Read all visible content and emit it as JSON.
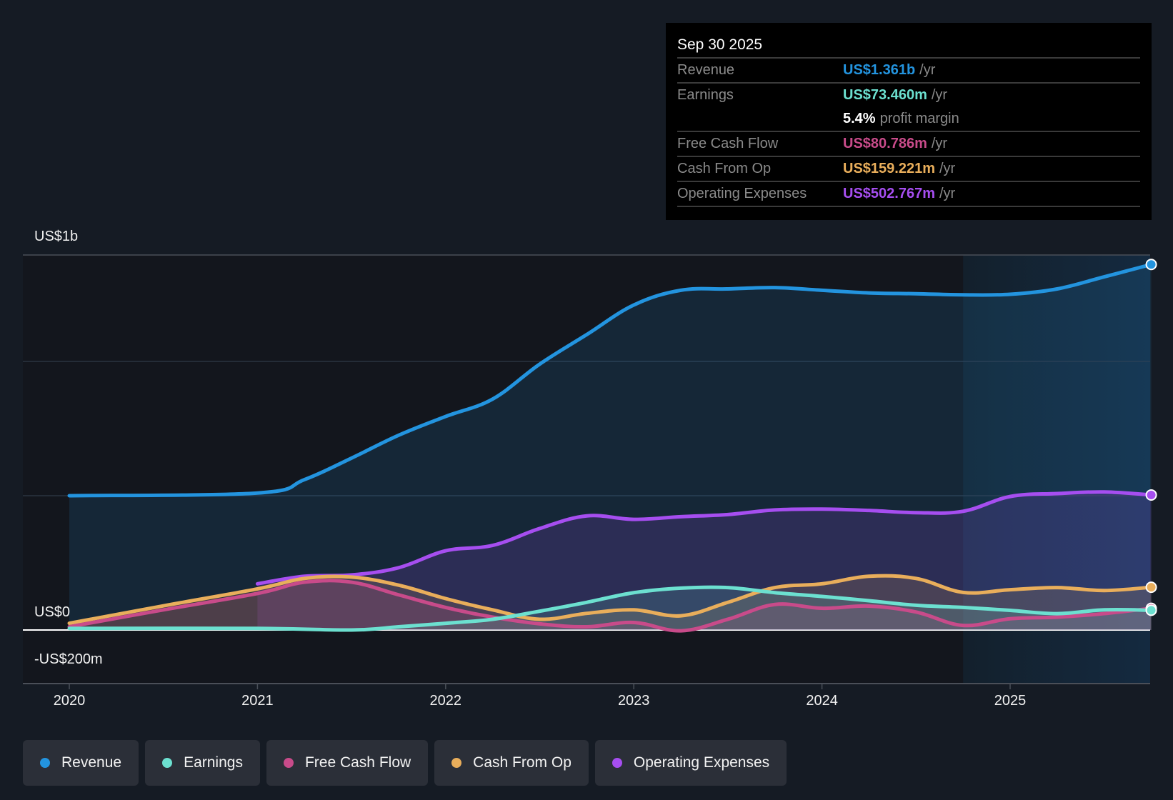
{
  "tooltip": {
    "date": "Sep 30 2025",
    "rows": [
      {
        "label": "Revenue",
        "value": "US$1.361b",
        "unit": "/yr",
        "color": "#2394df"
      },
      {
        "label": "Earnings",
        "value": "US$73.460m",
        "unit": "/yr",
        "color": "#6ce0d0"
      },
      {
        "label": "",
        "value": "5.4%",
        "unit": "profit margin",
        "color": "#ffffff"
      },
      {
        "label": "Free Cash Flow",
        "value": "US$80.786m",
        "unit": "/yr",
        "color": "#c84b8a"
      },
      {
        "label": "Cash From Op",
        "value": "US$159.221m",
        "unit": "/yr",
        "color": "#e9ae5b"
      },
      {
        "label": "Operating Expenses",
        "value": "US$502.767m",
        "unit": "/yr",
        "color": "#a64ef0"
      }
    ]
  },
  "legend": [
    {
      "label": "Revenue",
      "color": "#2394df"
    },
    {
      "label": "Earnings",
      "color": "#6ce0d0"
    },
    {
      "label": "Free Cash Flow",
      "color": "#c84b8a"
    },
    {
      "label": "Cash From Op",
      "color": "#e9ae5b"
    },
    {
      "label": "Operating Expenses",
      "color": "#a64ef0"
    }
  ],
  "chart_data": {
    "type": "area",
    "title": "",
    "xlabel": "",
    "ylabel": "",
    "x_ticks": [
      "2020",
      "2021",
      "2022",
      "2023",
      "2024",
      "2025"
    ],
    "y_tick_labels": [
      {
        "value": 1000,
        "label": "US$1b"
      },
      {
        "value": 0,
        "label": "US$0"
      },
      {
        "value": -200,
        "label": "-US$200m"
      }
    ],
    "gridlines_at": [
      1396,
      1000,
      500,
      0
    ],
    "xlim": [
      2019.8,
      2025.75
    ],
    "ylim": [
      -200,
      1396
    ],
    "units": "US$ millions",
    "highlight_region": {
      "from": 2024.75,
      "to": 2025.75
    },
    "grid": true,
    "legend_position": "bottom",
    "series": [
      {
        "name": "Revenue",
        "color": "#2394df",
        "x": [
          2020,
          2021,
          2021.25,
          2021.5,
          2021.75,
          2022,
          2022.25,
          2022.5,
          2022.75,
          2023,
          2023.25,
          2023.5,
          2023.75,
          2024,
          2024.25,
          2024.5,
          2024.75,
          2025,
          2025.25,
          2025.5,
          2025.75
        ],
        "values": [
          500,
          510,
          560,
          640,
          725,
          795,
          860,
          990,
          1100,
          1210,
          1265,
          1270,
          1275,
          1265,
          1255,
          1252,
          1248,
          1250,
          1270,
          1315,
          1361
        ]
      },
      {
        "name": "Operating Expenses",
        "color": "#a64ef0",
        "x": [
          2021,
          2021.25,
          2021.5,
          2021.75,
          2022,
          2022.25,
          2022.5,
          2022.75,
          2023,
          2023.25,
          2023.5,
          2023.75,
          2024,
          2024.25,
          2024.5,
          2024.75,
          2025,
          2025.25,
          2025.5,
          2025.75
        ],
        "values": [
          172,
          200,
          205,
          232,
          295,
          315,
          378,
          425,
          412,
          422,
          430,
          447,
          450,
          445,
          437,
          442,
          497,
          508,
          514,
          502.8
        ]
      },
      {
        "name": "Cash From Op",
        "color": "#e9ae5b",
        "x": [
          2020,
          2020.5,
          2021,
          2021.25,
          2021.5,
          2021.75,
          2022,
          2022.25,
          2022.5,
          2022.75,
          2023,
          2023.25,
          2023.5,
          2023.75,
          2024,
          2024.25,
          2024.5,
          2024.75,
          2025,
          2025.25,
          2025.5,
          2025.75
        ],
        "values": [
          25,
          90,
          153,
          192,
          197,
          167,
          117,
          75,
          40,
          62,
          75,
          53,
          103,
          158,
          172,
          200,
          192,
          140,
          150,
          158,
          147,
          159.2
        ]
      },
      {
        "name": "Free Cash Flow",
        "color": "#c84b8a",
        "x": [
          2020,
          2020.5,
          2021,
          2021.25,
          2021.5,
          2021.75,
          2022,
          2022.25,
          2022.5,
          2022.75,
          2023,
          2023.25,
          2023.5,
          2023.75,
          2024,
          2024.25,
          2024.5,
          2024.75,
          2025,
          2025.25,
          2025.5,
          2025.75
        ],
        "values": [
          12,
          75,
          136,
          178,
          178,
          131,
          84,
          48,
          23,
          12,
          28,
          -3,
          40,
          95,
          81,
          89,
          67,
          17,
          42,
          48,
          61,
          80.8
        ]
      },
      {
        "name": "Earnings",
        "color": "#6ce0d0",
        "x": [
          2020,
          2021,
          2021.5,
          2021.75,
          2022,
          2022.25,
          2022.5,
          2022.75,
          2023,
          2023.25,
          2023.5,
          2023.75,
          2024,
          2024.25,
          2024.5,
          2024.75,
          2025,
          2025.25,
          2025.5,
          2025.75
        ],
        "values": [
          6,
          6,
          0,
          12,
          25,
          40,
          70,
          103,
          139,
          156,
          158,
          139,
          125,
          109,
          92,
          84,
          73,
          61,
          75,
          73.5
        ]
      }
    ]
  }
}
